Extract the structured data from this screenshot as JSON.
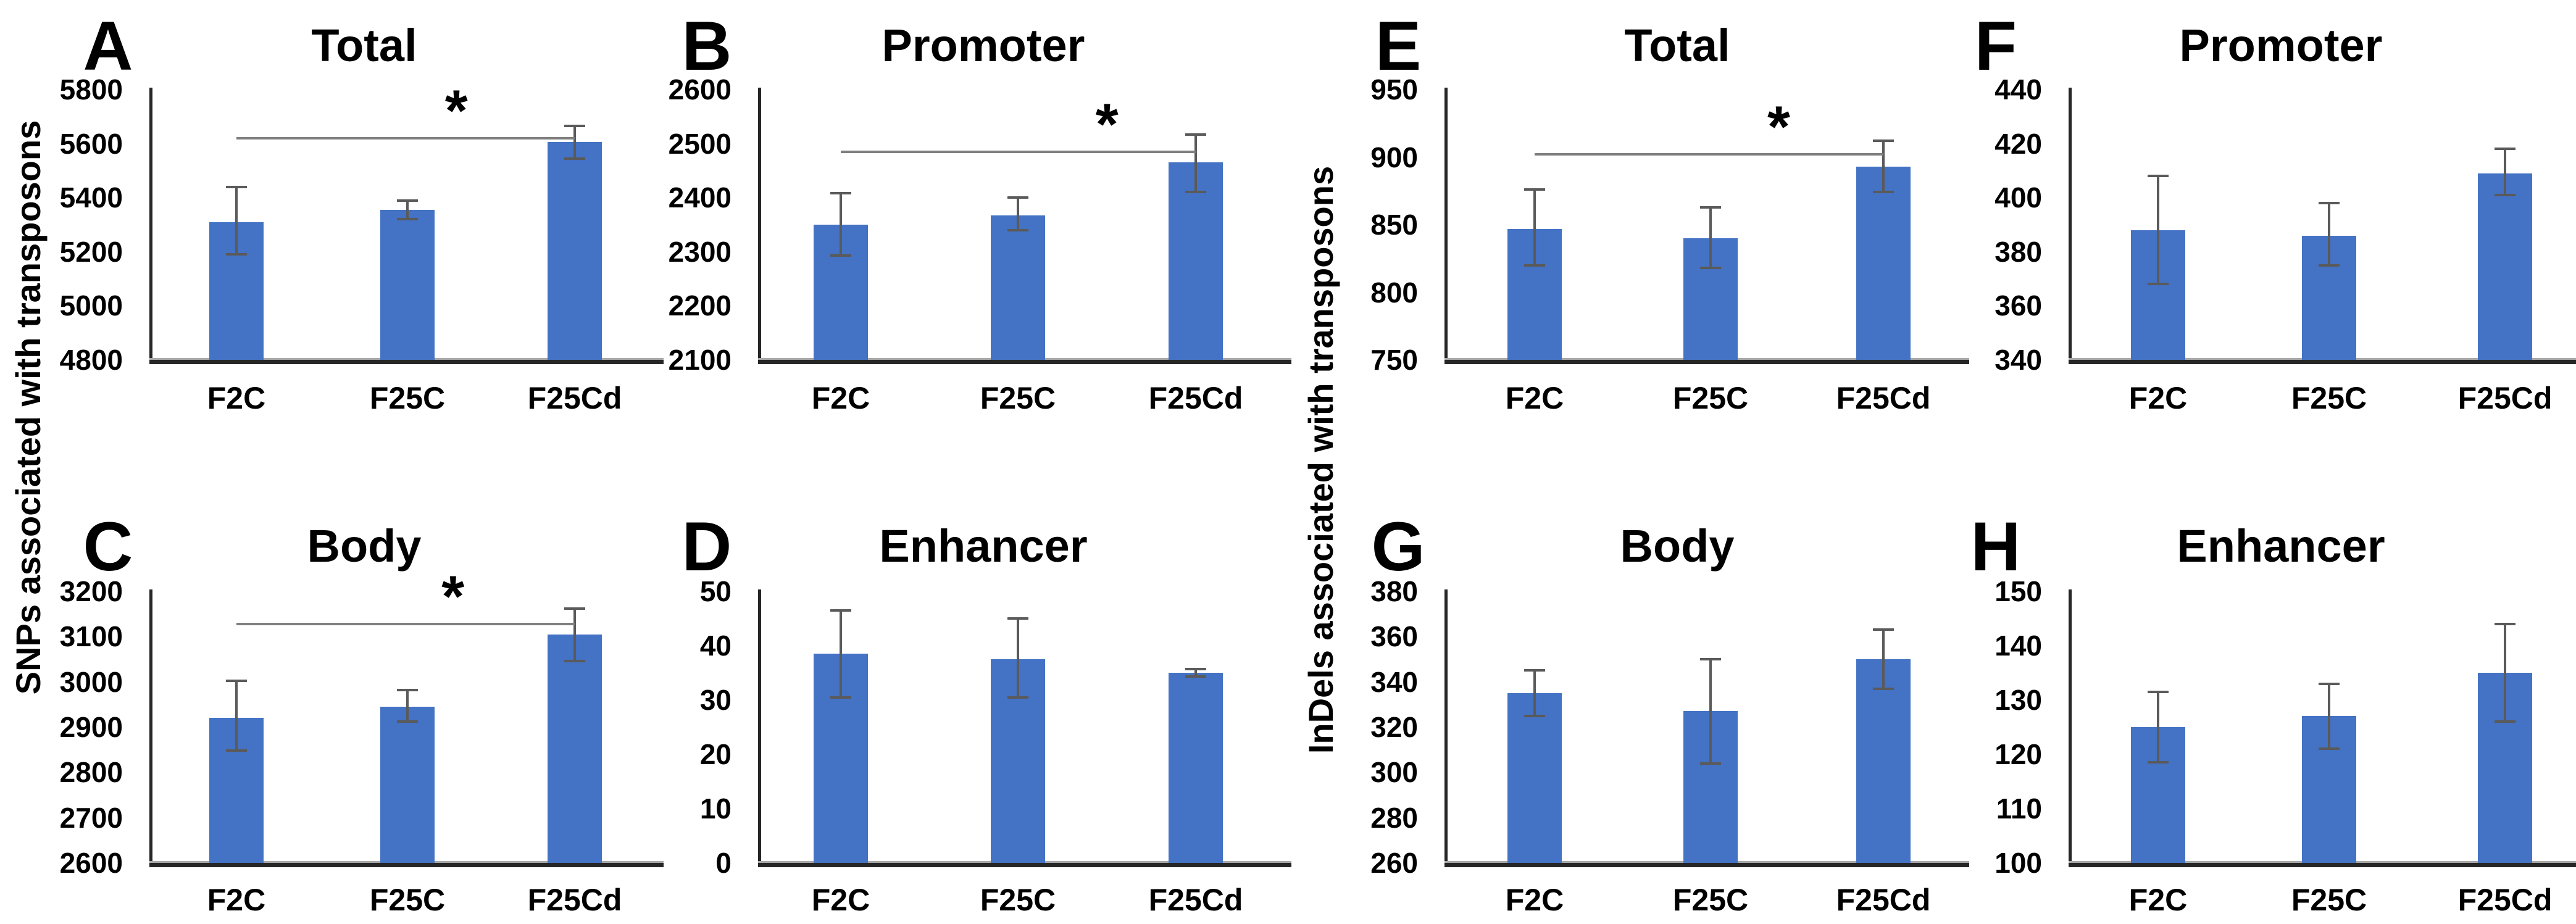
{
  "figure": {
    "background": "#ffffff",
    "bar_color": "#4472C4",
    "error_bar_color": "#5a5a5a",
    "sig_line_color": "#7f7f7f",
    "axis_color": "#262626",
    "axis_shadow_color": "#a8a8a8",
    "text_color": "#000000"
  },
  "group_labels": [
    {
      "text": "SNPs associated with transposons"
    },
    {
      "text": "InDels associated with transposons"
    }
  ],
  "chart_data": [
    {
      "panel": "A",
      "title": "Total",
      "type": "bar",
      "group": "SNPs associated with transposons",
      "categories": [
        "F2C",
        "F25C",
        "F25Cd"
      ],
      "values": [
        5310,
        5355,
        5605
      ],
      "error_low": [
        5190,
        5320,
        5545
      ],
      "error_high": [
        5440,
        5390,
        5665
      ],
      "ylim": [
        4800,
        5800
      ],
      "yticks": [
        5800,
        5600,
        5400,
        5200,
        5000,
        4800
      ],
      "grid": "off",
      "legend": "none",
      "significance": {
        "label": "*",
        "from": "F2C",
        "to": "F25Cd",
        "line_y": 5625
      }
    },
    {
      "panel": "B",
      "title": "Promoter",
      "type": "bar",
      "group": "SNPs associated with transposons",
      "categories": [
        "F2C",
        "F25C",
        "F25Cd"
      ],
      "values": [
        2350,
        2367,
        2465
      ],
      "error_low": [
        2293,
        2340,
        2410
      ],
      "error_high": [
        2408,
        2400,
        2517
      ],
      "ylim": [
        2100,
        2600
      ],
      "yticks": [
        2600,
        2500,
        2400,
        2300,
        2200,
        2100
      ],
      "grid": "off",
      "legend": "none",
      "significance": {
        "label": "*",
        "from": "F2C",
        "to": "F25Cd",
        "line_y": 2487
      }
    },
    {
      "panel": "C",
      "title": "Body",
      "type": "bar",
      "group": "SNPs associated with transposons",
      "categories": [
        "F2C",
        "F25C",
        "F25Cd"
      ],
      "values": [
        2920,
        2945,
        3105
      ],
      "error_low": [
        2848,
        2912,
        3046
      ],
      "error_high": [
        3002,
        2982,
        3162
      ],
      "ylim": [
        2600,
        3200
      ],
      "yticks": [
        3200,
        3100,
        3000,
        2900,
        2800,
        2700,
        2600
      ],
      "grid": "off",
      "legend": "none",
      "significance": {
        "label": "*",
        "from": "F2C",
        "to": "F25Cd",
        "line_y": 3130
      }
    },
    {
      "panel": "D",
      "title": "Enhancer",
      "type": "bar",
      "group": "SNPs associated with transposons",
      "categories": [
        "F2C",
        "F25C",
        "F25Cd"
      ],
      "values": [
        38.5,
        37.5,
        35
      ],
      "error_low": [
        30.5,
        30.5,
        34.3
      ],
      "error_high": [
        46.5,
        45,
        35.7
      ],
      "ylim": [
        0,
        50
      ],
      "yticks": [
        50,
        40,
        30,
        20,
        10,
        0
      ],
      "grid": "off",
      "legend": "none",
      "significance": null
    },
    {
      "panel": "E",
      "title": "Total",
      "type": "bar",
      "group": "InDels associated with transposons",
      "categories": [
        "F2C",
        "F25C",
        "F25Cd"
      ],
      "values": [
        847,
        840,
        893
      ],
      "error_low": [
        820,
        818,
        874
      ],
      "error_high": [
        876,
        863,
        912
      ],
      "ylim": [
        750,
        950
      ],
      "yticks": [
        950,
        900,
        850,
        800,
        750
      ],
      "grid": "off",
      "legend": "none",
      "significance": {
        "label": "*",
        "from": "F2C",
        "to": "F25Cd",
        "line_y": 903
      }
    },
    {
      "panel": "F",
      "title": "Promoter",
      "type": "bar",
      "group": "InDels associated with transposons",
      "categories": [
        "F2C",
        "F25C",
        "F25Cd"
      ],
      "values": [
        388,
        386,
        409
      ],
      "error_low": [
        368,
        375,
        401
      ],
      "error_high": [
        408,
        398,
        418
      ],
      "ylim": [
        340,
        440
      ],
      "yticks": [
        440,
        420,
        400,
        380,
        360,
        340
      ],
      "grid": "off",
      "legend": "none",
      "significance": null
    },
    {
      "panel": "G",
      "title": "Body",
      "type": "bar",
      "group": "InDels associated with transposons",
      "categories": [
        "F2C",
        "F25C",
        "F25Cd"
      ],
      "values": [
        335,
        327,
        350
      ],
      "error_low": [
        325,
        304,
        337
      ],
      "error_high": [
        345,
        350,
        363
      ],
      "ylim": [
        260,
        380
      ],
      "yticks": [
        380,
        360,
        340,
        320,
        300,
        280,
        260
      ],
      "grid": "off",
      "legend": "none",
      "significance": null
    },
    {
      "panel": "H",
      "title": "Enhancer",
      "type": "bar",
      "group": "InDels associated with transposons",
      "categories": [
        "F2C",
        "F25C",
        "F25Cd"
      ],
      "values": [
        125,
        127,
        135
      ],
      "error_low": [
        118.5,
        121,
        126
      ],
      "error_high": [
        131.5,
        133,
        144
      ],
      "ylim": [
        100,
        150
      ],
      "yticks": [
        150,
        140,
        130,
        120,
        110,
        100
      ],
      "grid": "off",
      "legend": "none",
      "significance": null
    }
  ]
}
